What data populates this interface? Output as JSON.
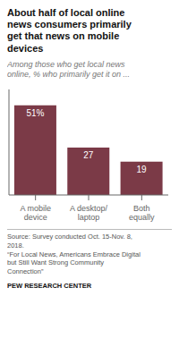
{
  "chart_data": {
    "type": "bar",
    "title": "About half of local online\nnews consumers primarily\nget that news on mobile\ndevices",
    "subtitle": "Among those who get local news\nonline, % who primarily get it on ...",
    "categories": [
      "A mobile\ndevice",
      "A desktop/\nlaptop",
      "Both\nequally"
    ],
    "values": [
      51,
      27,
      19
    ],
    "value_labels": [
      "51%",
      "27",
      "19"
    ],
    "data_labels": true,
    "color": "#7b3a47",
    "ylim": [
      0,
      60
    ],
    "tick_labels": "x",
    "grid": false,
    "annotations": [
      "Source: Survey conducted Oct. 15-Nov. 8,\n2018.\n“For Local News, Americans Embrace Digital\nbut Still Want Strong Community\nConnection”",
      "PEW RESEARCH CENTER"
    ]
  }
}
